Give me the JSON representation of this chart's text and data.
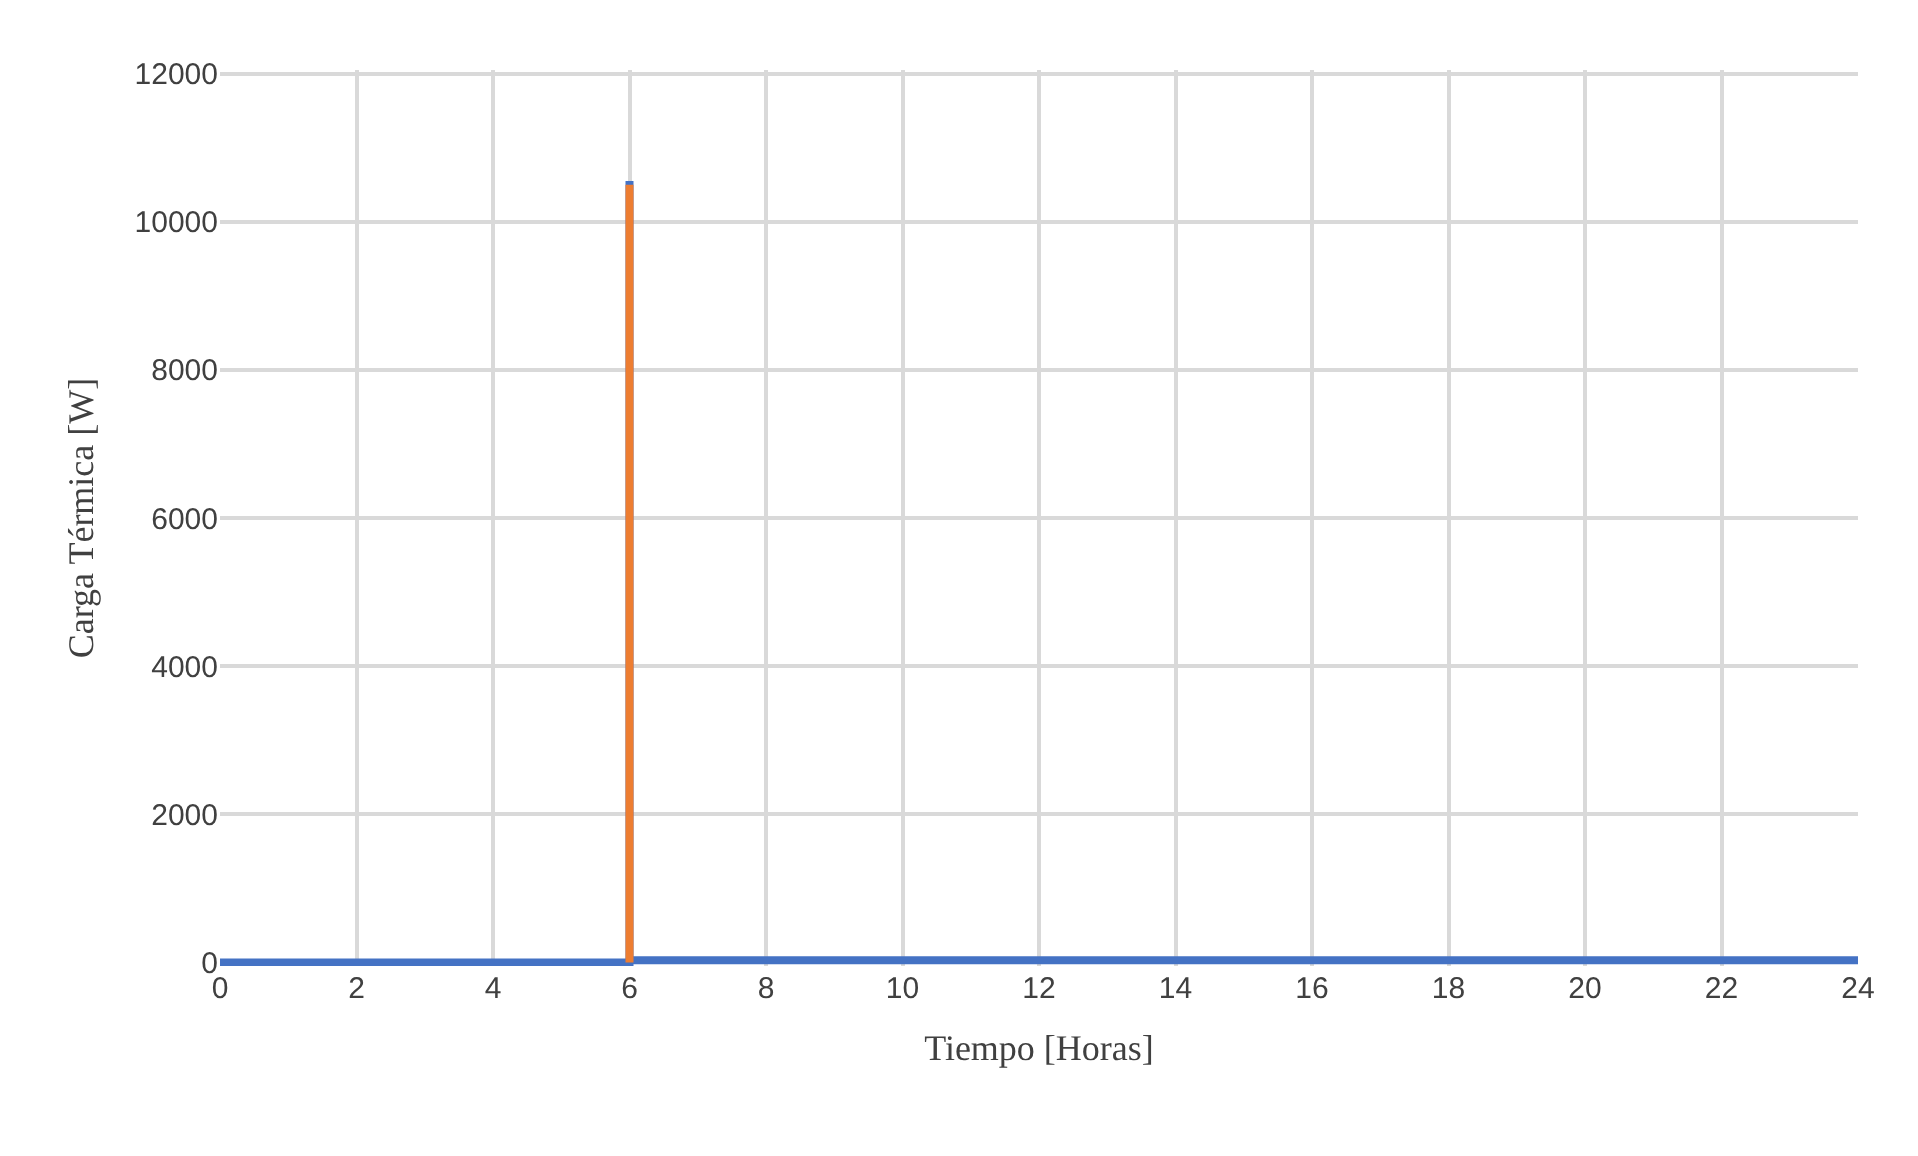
{
  "chart_data": {
    "type": "line",
    "xlabel": "Tiempo [Horas]",
    "ylabel": "Carga Térmica [W]",
    "series": [
      {
        "color": "#4472c4",
        "x": [
          0,
          6,
          6,
          6,
          24
        ],
        "values": [
          0,
          0,
          10550,
          30,
          30
        ]
      },
      {
        "color": "#ed7d31",
        "x": [
          6,
          6
        ],
        "values": [
          0,
          10500
        ]
      }
    ],
    "xlim": [
      0,
      24
    ],
    "xticks": [
      0,
      2,
      4,
      6,
      8,
      10,
      12,
      14,
      16,
      18,
      20,
      22,
      24
    ],
    "ylim": [
      0,
      12000
    ],
    "yticks": [
      0,
      2000,
      4000,
      6000,
      8000,
      10000,
      12000
    ],
    "grid": true,
    "marker": "none",
    "line_style": "solid"
  }
}
